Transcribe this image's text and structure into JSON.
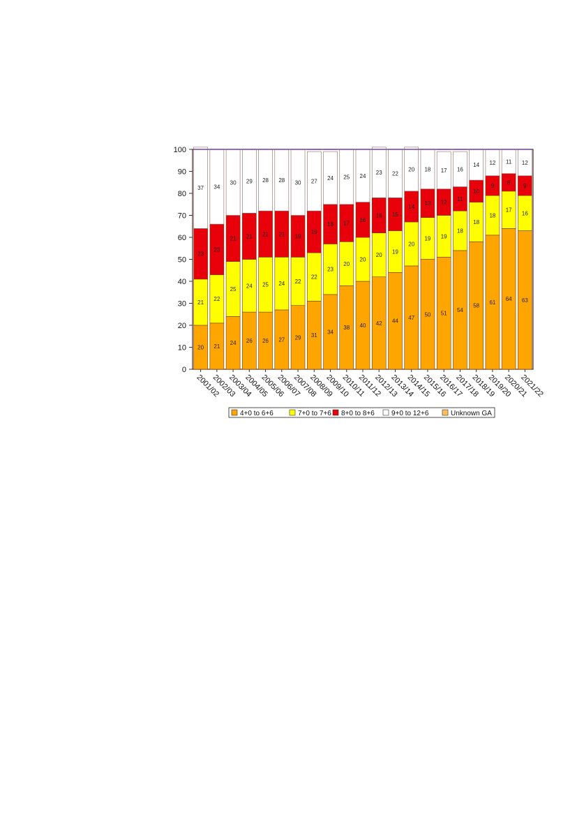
{
  "chart_data": {
    "type": "bar",
    "stacked": true,
    "percent_stacked": true,
    "title": "",
    "xlabel": "",
    "ylabel": "",
    "ylim": [
      0,
      100
    ],
    "y_ticks": [
      0,
      10,
      20,
      30,
      40,
      50,
      60,
      70,
      80,
      90,
      100
    ],
    "categories": [
      "2001/02",
      "2002/03",
      "2003/04",
      "2004/05",
      "2005/06",
      "2006/07",
      "2007/08",
      "2008/09",
      "2009/10",
      "2010/11",
      "2011/12",
      "2012/13",
      "2013/14",
      "2014/15",
      "2015/16",
      "2016/17",
      "2017/18",
      "2018/19",
      "2019/20",
      "2020/21",
      "2021/22"
    ],
    "series": [
      {
        "name": "4+0 to 6+6",
        "color": "#FFA500",
        "values": [
          20,
          21,
          24,
          26,
          26,
          27,
          29,
          31,
          34,
          38,
          40,
          42,
          44,
          47,
          50,
          51,
          54,
          58,
          61,
          64,
          63
        ]
      },
      {
        "name": "7+0 to 7+6",
        "color": "#FFFF00",
        "values": [
          21,
          22,
          25,
          24,
          25,
          24,
          22,
          22,
          23,
          20,
          20,
          20,
          19,
          20,
          19,
          19,
          18,
          18,
          18,
          17,
          16
        ]
      },
      {
        "name": "8+0 to 8+6",
        "color": "#E8000B",
        "values": [
          23,
          23,
          21,
          21,
          21,
          21,
          19,
          19,
          18,
          17,
          16,
          16,
          15,
          14,
          13,
          12,
          11,
          10,
          9,
          8,
          9
        ]
      },
      {
        "name": "9+0 to 12+6",
        "color": "#FFFFFF",
        "values": [
          37,
          34,
          30,
          29,
          28,
          28,
          30,
          27,
          24,
          25,
          24,
          23,
          22,
          20,
          18,
          17,
          16,
          14,
          12,
          11,
          12
        ]
      },
      {
        "name": "Unknown GA",
        "color": "#FFBE5A",
        "values": [
          0,
          0,
          0,
          0,
          0,
          0,
          0,
          0,
          0,
          0,
          0,
          0,
          0,
          0,
          0,
          0,
          0,
          0,
          0,
          0,
          0
        ]
      }
    ],
    "legend_position": "bottom",
    "grid": false,
    "data_labels": true
  }
}
